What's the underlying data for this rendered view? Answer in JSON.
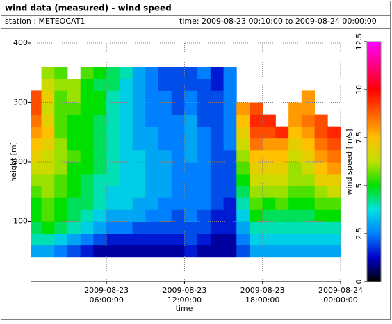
{
  "chart_data": {
    "type": "heatmap",
    "title": "wind data (measured) - wind speed",
    "station": "station : METEOCAT1",
    "period": "time: 2009-08-23 00:10:00 to 2009-08-24 00:00:00",
    "xlabel": "time",
    "ylabel": "height [m]",
    "colorbar_label": "wind speed [m/s]",
    "xlim": [
      "2009-08-23 00:10:00",
      "2009-08-24 00:00:00"
    ],
    "xticks": [
      {
        "value": "2009-08-23 06:00:00",
        "label": [
          "2009-08-23",
          "06:00:00"
        ]
      },
      {
        "value": "2009-08-23 12:00:00",
        "label": [
          "2009-08-23",
          "12:00:00"
        ]
      },
      {
        "value": "2009-08-23 18:00:00",
        "label": [
          "2009-08-23",
          "18:00:00"
        ]
      },
      {
        "value": "2009-08-24 00:00:00",
        "label": [
          "2009-08-24",
          "00:00:00"
        ]
      }
    ],
    "ylim": [
      0,
      400
    ],
    "yticks": [
      100,
      200,
      300,
      400
    ],
    "grid": true,
    "zlim": [
      0,
      12.5
    ],
    "zticks": [
      0,
      2.5,
      5,
      7.5,
      10,
      12.5
    ],
    "colorscale": [
      [
        0,
        "#000000"
      ],
      [
        1.25,
        "#0000c8"
      ],
      [
        2.5,
        "#0080ff"
      ],
      [
        3.75,
        "#00e0e0"
      ],
      [
        5,
        "#00e000"
      ],
      [
        6.25,
        "#c0e000"
      ],
      [
        7.5,
        "#ffc000"
      ],
      [
        8.75,
        "#ff6000"
      ],
      [
        10,
        "#ff0000"
      ],
      [
        11.25,
        "#ff0080"
      ],
      [
        12.5,
        "#ff00ff"
      ]
    ],
    "x": [
      "2009-08-23 00:10:00",
      "2009-08-23 01:00:00",
      "2009-08-23 02:00:00",
      "2009-08-23 03:00:00",
      "2009-08-23 04:00:00",
      "2009-08-23 05:00:00",
      "2009-08-23 06:00:00",
      "2009-08-23 07:00:00",
      "2009-08-23 08:00:00",
      "2009-08-23 09:00:00",
      "2009-08-23 10:00:00",
      "2009-08-23 11:00:00",
      "2009-08-23 12:00:00",
      "2009-08-23 13:00:00",
      "2009-08-23 14:00:00",
      "2009-08-23 15:00:00",
      "2009-08-23 16:00:00",
      "2009-08-23 17:00:00",
      "2009-08-23 18:00:00",
      "2009-08-23 19:00:00",
      "2009-08-23 20:00:00",
      "2009-08-23 21:00:00",
      "2009-08-23 22:00:00",
      "2009-08-23 23:00:00"
    ],
    "y_edges": [
      40,
      60,
      80,
      100,
      120,
      140,
      160,
      180,
      200,
      220,
      240,
      260,
      280,
      300,
      320,
      340,
      360
    ],
    "z": [
      [
        3,
        4,
        4.5,
        5,
        5,
        5.5,
        6,
        6.5,
        7,
        7.5,
        8,
        8.5,
        9,
        9,
        null,
        null
      ],
      [
        3,
        4,
        5,
        5.5,
        5.5,
        6,
        6,
        6.5,
        6.5,
        7,
        7.5,
        7,
        6.5,
        7,
        6.5,
        6
      ],
      [
        2.5,
        3.5,
        4.5,
        5,
        5,
        5.5,
        5.5,
        6,
        6,
        6,
        5.5,
        5.5,
        5.5,
        5.5,
        6,
        5.5
      ],
      [
        2,
        3,
        4,
        4.5,
        4.5,
        5,
        5,
        5,
        5.5,
        5,
        5,
        5,
        5.5,
        6,
        6,
        null
      ],
      [
        1.5,
        2.5,
        3.5,
        4,
        4.5,
        4.5,
        4.5,
        5,
        5,
        5,
        5,
        5,
        5,
        5,
        5,
        5.5
      ],
      [
        1,
        2,
        3,
        3.5,
        4,
        4,
        4,
        4.5,
        4.5,
        4.5,
        4.5,
        4.5,
        5,
        5,
        4.5,
        5
      ],
      [
        1,
        1.5,
        2.5,
        3,
        3.5,
        3.5,
        4,
        4,
        4,
        4,
        4,
        4,
        4,
        4,
        4.5,
        4.5
      ],
      [
        1,
        1.5,
        2.5,
        3,
        3.5,
        3.5,
        3.5,
        3.5,
        3.5,
        3.5,
        3.5,
        3.5,
        3.5,
        3.5,
        3.5,
        4
      ],
      [
        1,
        1.5,
        2,
        3,
        3,
        3.5,
        3.5,
        3.5,
        3.5,
        3,
        3,
        3,
        3,
        3,
        3,
        3
      ],
      [
        1,
        1.5,
        2,
        2.5,
        3,
        3,
        3,
        3,
        3,
        3,
        3,
        2.5,
        2.5,
        2.5,
        2.5,
        2.5
      ],
      [
        1,
        1.5,
        2,
        2.5,
        2.5,
        3,
        3,
        3,
        3,
        2.5,
        2.5,
        2.5,
        2.5,
        2.5,
        2,
        2
      ],
      [
        1,
        1.5,
        2,
        2,
        2.5,
        2.5,
        2.5,
        2.5,
        2.5,
        2.5,
        2.5,
        2.5,
        2,
        2,
        2,
        2
      ],
      [
        1.5,
        2,
        2,
        2.5,
        2.5,
        2.5,
        2.5,
        2.5,
        3,
        3,
        3,
        3,
        2.5,
        2.5,
        2,
        2
      ],
      [
        1,
        1.5,
        2,
        2,
        2.5,
        2.5,
        2.5,
        2.5,
        2.5,
        2.5,
        2.5,
        2,
        2,
        2,
        2,
        2.5
      ],
      [
        1,
        1,
        1.5,
        1.5,
        2,
        2,
        2,
        2,
        2,
        2,
        2,
        2,
        2,
        2,
        1.5,
        1.5
      ],
      [
        1,
        1,
        1.5,
        1.5,
        1.5,
        2,
        2,
        2,
        2,
        2.5,
        2.5,
        2.5,
        2.5,
        2.5,
        2.5,
        2.5
      ],
      [
        2,
        2.5,
        3,
        3.5,
        4,
        4.5,
        5,
        5.5,
        6,
        6.5,
        7,
        7.5,
        8,
        null,
        null,
        null
      ],
      [
        3,
        3.5,
        4,
        5,
        5.5,
        6,
        6.5,
        7,
        7.5,
        8.5,
        9,
        9.5,
        9,
        null,
        null,
        null
      ],
      [
        3,
        3.5,
        4,
        4.5,
        5,
        6,
        6.5,
        7,
        7.5,
        8,
        9,
        9.5,
        null,
        null,
        null,
        null
      ],
      [
        3,
        3.5,
        4,
        4.5,
        5.5,
        6,
        6.5,
        7,
        7.5,
        8,
        9.5,
        null,
        null,
        null,
        null,
        null
      ],
      [
        3,
        3.5,
        4,
        4.5,
        5,
        5.5,
        6,
        6,
        6.5,
        7,
        7.5,
        8,
        8,
        null,
        null,
        null
      ],
      [
        3,
        3.5,
        4,
        4.5,
        5,
        5.5,
        6,
        6.5,
        7,
        7.5,
        8,
        8.5,
        8,
        8,
        null,
        null
      ],
      [
        3,
        3.5,
        4,
        5,
        5.5,
        6,
        7,
        7.5,
        8,
        8.5,
        9,
        9,
        null,
        null,
        null,
        null
      ],
      [
        3,
        3.5,
        4,
        5,
        5.5,
        6.5,
        7,
        8,
        8.5,
        9,
        9.5,
        null,
        null,
        null,
        null,
        null
      ]
    ]
  }
}
